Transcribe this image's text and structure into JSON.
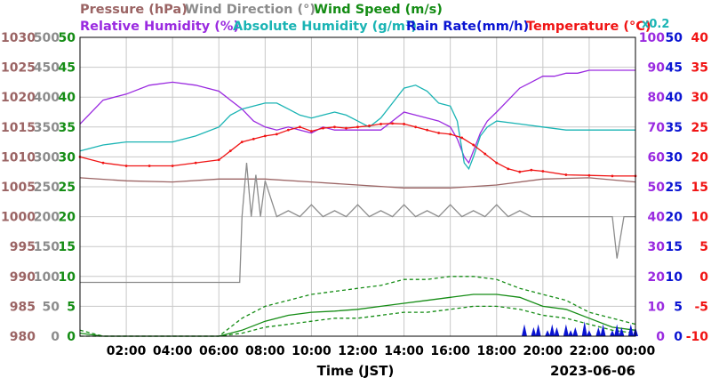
{
  "chart_data": {
    "type": "line",
    "date": "2023-06-06",
    "xlabel": "Time (JST)",
    "x_ticks": [
      "02:00",
      "04:00",
      "06:00",
      "08:00",
      "10:00",
      "12:00",
      "14:00",
      "16:00",
      "18:00",
      "20:00",
      "22:00",
      "00:00"
    ],
    "grid": true,
    "legend_rows": [
      [
        {
          "name": "Pressure (hPa)",
          "color": "#9b6464"
        },
        {
          "name": "Wind Direction (°)",
          "color": "#8c8c8c"
        },
        {
          "name": "Wind Speed (m/s)",
          "color": "#148c14"
        }
      ],
      [
        {
          "name": "Relative Humidity (%)",
          "color": "#9a2ae0"
        },
        {
          "name": "Absolute Humidity (g/m³)",
          "color": "#1ab4b4"
        },
        {
          "name": "Rain Rate(mm/h)",
          "color": "#0a14d2"
        },
        {
          "name": "Temperature (°C)",
          "color": "#f01414"
        }
      ]
    ],
    "abs_humidity_scale_note": "x0.2",
    "axes": {
      "pressure": {
        "range": [
          980,
          1030
        ],
        "ticks": [
          "1030",
          "1025",
          "1020",
          "1015",
          "1010",
          "1005",
          "1000",
          "995",
          "990",
          "985",
          "980"
        ],
        "color": "#9b6464"
      },
      "wind_direction": {
        "range": [
          0,
          500
        ],
        "ticks": [
          "500",
          "450",
          "400",
          "350",
          "300",
          "250",
          "200",
          "150",
          "100",
          "50",
          "0"
        ],
        "color": "#8c8c8c"
      },
      "wind_speed": {
        "range": [
          0,
          50
        ],
        "ticks": [
          "50",
          "45",
          "40",
          "35",
          "30",
          "25",
          "20",
          "15",
          "10",
          "5",
          "0"
        ],
        "color": "#148c14"
      },
      "humidity": {
        "range": [
          0,
          100
        ],
        "ticks": [
          "100",
          "90",
          "80",
          "70",
          "60",
          "50",
          "40",
          "30",
          "20",
          "10",
          "0"
        ],
        "color": "#9a2ae0"
      },
      "rain_rate": {
        "range": [
          0,
          50
        ],
        "ticks": [
          "50",
          "45",
          "40",
          "35",
          "30",
          "25",
          "20",
          "15",
          "10",
          "5",
          "0"
        ],
        "color": "#0a14d2"
      },
      "temperature": {
        "range": [
          -10,
          40
        ],
        "ticks": [
          "40",
          "35",
          "30",
          "25",
          "20",
          "15",
          "10",
          "5",
          "0",
          "-5",
          "-10"
        ],
        "color": "#f01414"
      }
    },
    "series": [
      {
        "name": "Relative Humidity",
        "axis": "humidity",
        "color": "#9a2ae0",
        "x": [
          0,
          1,
          2,
          3,
          4,
          5,
          6,
          6.5,
          7,
          7.5,
          8,
          8.5,
          9,
          9.5,
          10,
          10.5,
          11,
          12,
          13,
          13.5,
          14,
          14.5,
          15,
          15.5,
          16,
          16.3,
          16.6,
          16.8,
          17,
          17.3,
          17.6,
          18,
          18.5,
          19,
          19.5,
          20,
          20.5,
          21,
          21.5,
          22,
          23,
          24
        ],
        "y": [
          71,
          79,
          81,
          84,
          85,
          84,
          82,
          79,
          76,
          72,
          70,
          69,
          70,
          69,
          68,
          70,
          69,
          69,
          69,
          72,
          75,
          74,
          73,
          72,
          70,
          66,
          60,
          58,
          62,
          68,
          72,
          75,
          79,
          83,
          85,
          87,
          87,
          88,
          88,
          89,
          89,
          89
        ]
      },
      {
        "name": "Absolute Humidity (x0.2)",
        "axis": "humidity",
        "color": "#1ab4b4",
        "x": [
          0,
          1,
          2,
          3,
          4,
          5,
          6,
          6.5,
          7,
          7.5,
          8,
          8.5,
          9,
          9.5,
          10,
          10.5,
          11,
          11.5,
          12,
          12.5,
          13,
          13.5,
          14,
          14.5,
          15,
          15.5,
          16,
          16.3,
          16.6,
          16.8,
          17,
          17.3,
          17.6,
          18,
          19,
          20,
          21,
          22,
          23,
          24
        ],
        "y": [
          62,
          64,
          65,
          65,
          65,
          67,
          70,
          74,
          76,
          77,
          78,
          78,
          76,
          74,
          73,
          74,
          75,
          74,
          72,
          70,
          73,
          78,
          83,
          84,
          82,
          78,
          77,
          72,
          58,
          56,
          60,
          67,
          70,
          72,
          71,
          70,
          69,
          69,
          69,
          69
        ]
      },
      {
        "name": "Temperature",
        "axis": "temperature",
        "color": "#f01414",
        "x": [
          0,
          1,
          2,
          3,
          4,
          5,
          6,
          6.5,
          7,
          7.5,
          8,
          8.5,
          9,
          9.5,
          10,
          10.5,
          11,
          11.5,
          12,
          12.5,
          13,
          13.5,
          14,
          14.5,
          15,
          15.5,
          16,
          16.5,
          17,
          17.5,
          18,
          18.5,
          19,
          19.5,
          20,
          21,
          22,
          23,
          24
        ],
        "y": [
          20,
          19,
          18.5,
          18.5,
          18.5,
          19,
          19.5,
          21,
          22.5,
          23,
          23.5,
          23.8,
          24.5,
          25,
          24.3,
          24.8,
          25,
          24.8,
          25,
          25.2,
          25.5,
          25.6,
          25.5,
          25,
          24.5,
          24,
          23.8,
          23.2,
          22,
          20.5,
          19,
          18,
          17.5,
          17.8,
          17.6,
          17,
          16.9,
          16.8,
          16.8
        ]
      },
      {
        "name": "Pressure",
        "axis": "pressure",
        "color": "#9b6464",
        "x": [
          0,
          2,
          4,
          6,
          8,
          10,
          12,
          14,
          16,
          18,
          20,
          22,
          24
        ],
        "y": [
          1006.5,
          1006,
          1005.8,
          1006.3,
          1006.3,
          1005.8,
          1005.3,
          1004.8,
          1004.8,
          1005.3,
          1006.3,
          1006.5,
          1005.8
        ]
      },
      {
        "name": "Wind Direction",
        "axis": "wind_direction",
        "color": "#8c8c8c",
        "x": [
          0,
          1,
          2,
          3,
          4,
          5,
          6,
          6.9,
          7,
          7.2,
          7.4,
          7.6,
          7.8,
          8,
          8.5,
          9,
          9.5,
          10,
          10.5,
          11,
          11.5,
          12,
          12.5,
          13,
          13.5,
          14,
          14.5,
          15,
          15.5,
          16,
          16.5,
          17,
          17.5,
          18,
          18.5,
          19,
          19.5,
          20,
          21,
          22,
          23,
          23.2,
          23.5,
          24
        ],
        "y": [
          90,
          90,
          90,
          90,
          90,
          90,
          90,
          90,
          200,
          290,
          200,
          270,
          200,
          260,
          200,
          210,
          200,
          220,
          200,
          210,
          200,
          220,
          200,
          210,
          200,
          220,
          200,
          210,
          200,
          220,
          200,
          210,
          200,
          220,
          200,
          210,
          200,
          200,
          200,
          200,
          200,
          130,
          200,
          200
        ]
      },
      {
        "name": "Wind Speed",
        "axis": "wind_speed",
        "color": "#148c14",
        "x": [
          0,
          1,
          2,
          3,
          4,
          5,
          6,
          7,
          8,
          9,
          10,
          11,
          12,
          13,
          14,
          15,
          16,
          17,
          18,
          19,
          20,
          21,
          22,
          23,
          24
        ],
        "y": [
          0.5,
          0,
          0,
          0,
          0,
          0,
          0,
          1,
          2.5,
          3.5,
          4,
          4.2,
          4.5,
          5,
          5.5,
          6,
          6.5,
          7,
          7,
          6.5,
          5,
          4.5,
          3,
          1.5,
          1
        ]
      },
      {
        "name": "Wind Speed (gust)",
        "axis": "wind_speed",
        "color": "#148c14",
        "x": [
          0,
          1,
          2,
          3,
          4,
          5,
          6,
          7,
          8,
          9,
          10,
          11,
          12,
          13,
          14,
          15,
          16,
          17,
          18,
          19,
          20,
          21,
          22,
          23,
          24
        ],
        "y": [
          1,
          0,
          0,
          0,
          0,
          0,
          0,
          3,
          5,
          6,
          7,
          7.5,
          8,
          8.5,
          9.5,
          9.5,
          10,
          10,
          9.5,
          8,
          7,
          6,
          4,
          3,
          2
        ]
      },
      {
        "name": "Wind Speed (avg)",
        "axis": "wind_speed",
        "color": "#148c14",
        "x": [
          0,
          1,
          2,
          3,
          4,
          5,
          6,
          7,
          8,
          9,
          10,
          11,
          12,
          13,
          14,
          15,
          16,
          17,
          18,
          19,
          20,
          21,
          22,
          23,
          24
        ],
        "y": [
          0,
          0,
          0,
          0,
          0,
          0,
          0,
          0.5,
          1.5,
          2,
          2.5,
          3,
          3,
          3.5,
          4,
          4,
          4.5,
          5,
          5,
          4.5,
          3.5,
          3,
          2,
          1,
          0.5
        ]
      },
      {
        "name": "Rain Rate",
        "axis": "rain_rate",
        "color": "#0a14d2",
        "x": [
          19.2,
          19.4,
          19.6,
          19.8,
          20,
          20.2,
          20.4,
          20.6,
          20.8,
          21,
          21.2,
          21.4,
          21.6,
          21.8,
          22,
          22.2,
          22.4,
          22.6,
          22.8,
          23,
          23.2,
          23.4,
          23.6,
          23.8,
          24
        ],
        "y": [
          2,
          0,
          1.5,
          2,
          0,
          1,
          2,
          1.5,
          0,
          2,
          1,
          1.5,
          0,
          2.5,
          1,
          0,
          1.5,
          2,
          0,
          1,
          2,
          1.5,
          0,
          2,
          1.5
        ]
      }
    ]
  }
}
